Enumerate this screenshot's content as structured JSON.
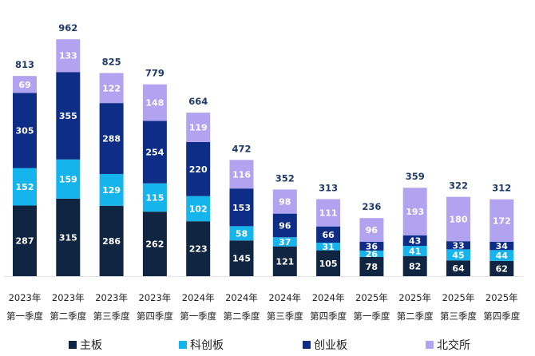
{
  "chart_data": {
    "type": "bar",
    "stacked": true,
    "title": "",
    "xlabel": "",
    "ylabel": "",
    "ylim": [
      0,
      1000
    ],
    "grid": false,
    "legend_position": "bottom",
    "categories": [
      [
        "2023年",
        "第一季度"
      ],
      [
        "2023年",
        "第二季度"
      ],
      [
        "2023年",
        "第三季度"
      ],
      [
        "2023年",
        "第四季度"
      ],
      [
        "2024年",
        "第一季度"
      ],
      [
        "2024年",
        "第二季度"
      ],
      [
        "2024年",
        "第三季度"
      ],
      [
        "2024年",
        "第四季度"
      ],
      [
        "2025年",
        "第一季度"
      ],
      [
        "2025年",
        "第二季度"
      ],
      [
        "2025年",
        "第三季度"
      ],
      [
        "2025年",
        "第四季度"
      ]
    ],
    "series": [
      {
        "name": "主板",
        "color": "#0f2541",
        "values": [
          287,
          315,
          286,
          262,
          223,
          145,
          121,
          105,
          78,
          82,
          64,
          62
        ]
      },
      {
        "name": "科创板",
        "color": "#16b4ec",
        "values": [
          152,
          159,
          129,
          115,
          102,
          58,
          37,
          31,
          26,
          41,
          45,
          44
        ]
      },
      {
        "name": "创业板",
        "color": "#0d2d86",
        "values": [
          305,
          355,
          288,
          254,
          220,
          153,
          96,
          66,
          36,
          43,
          33,
          34
        ]
      },
      {
        "name": "北交所",
        "color": "#b2a3f0",
        "values": [
          69,
          133,
          122,
          148,
          119,
          116,
          98,
          111,
          96,
          193,
          180,
          172
        ]
      }
    ],
    "totals": [
      813,
      962,
      825,
      779,
      664,
      472,
      352,
      313,
      236,
      359,
      322,
      312
    ]
  }
}
